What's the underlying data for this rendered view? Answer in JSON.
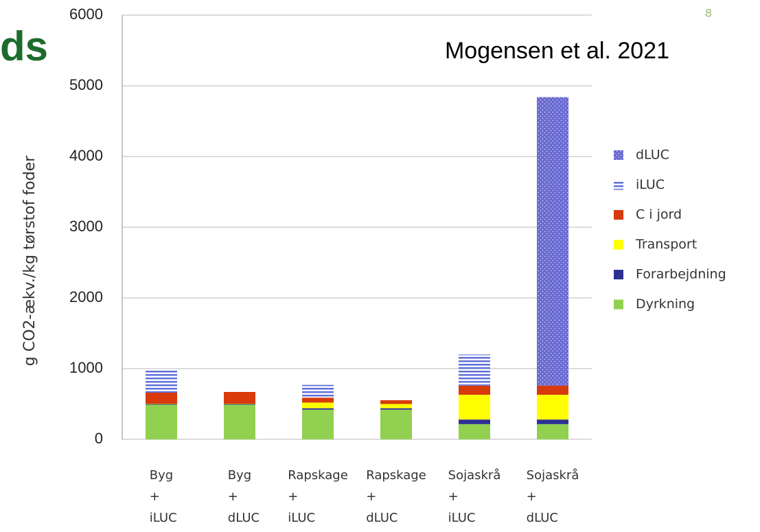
{
  "slide_number": "8",
  "title_fragment": "ds",
  "chart_data": {
    "type": "stacked-bar",
    "annotation": "Mogensen et al. 2021",
    "ylabel": "g CO2-ækv./kg tørstof foder",
    "categories": [
      [
        "Byg",
        "+",
        "iLUC"
      ],
      [
        "Byg",
        "+",
        "dLUC"
      ],
      [
        "Rapskage",
        "+",
        "iLUC"
      ],
      [
        "Rapskage",
        "+",
        "dLUC"
      ],
      [
        "Sojaskrå",
        "+",
        "iLUC"
      ],
      [
        "Sojaskrå",
        "+",
        "dLUC"
      ]
    ],
    "series": [
      {
        "name": "Dyrkning",
        "color": "#92d050",
        "values": [
          490,
          490,
          420,
          420,
          215,
          215
        ]
      },
      {
        "name": "Forarbejdning",
        "color": "#2e3192",
        "values": [
          10,
          10,
          20,
          20,
          65,
          65
        ]
      },
      {
        "name": "Transport",
        "color": "#ffff00",
        "values": [
          5,
          5,
          80,
          60,
          350,
          350
        ]
      },
      {
        "name": "C i jord",
        "color": "#d83a0b",
        "values": [
          155,
          165,
          70,
          53,
          130,
          130
        ]
      },
      {
        "name": "iLUC",
        "color": "#6070d8",
        "pattern": "horizontal-lines",
        "values": [
          330,
          0,
          180,
          0,
          440,
          0
        ]
      },
      {
        "name": "dLUC",
        "color": "#6b6bd2",
        "pattern": "dots",
        "values": [
          0,
          0,
          0,
          0,
          0,
          4080
        ]
      }
    ],
    "ylim": [
      0,
      6000
    ],
    "yticks": [
      0,
      1000,
      2000,
      3000,
      4000,
      5000,
      6000
    ],
    "grid": true,
    "legend": "right"
  }
}
